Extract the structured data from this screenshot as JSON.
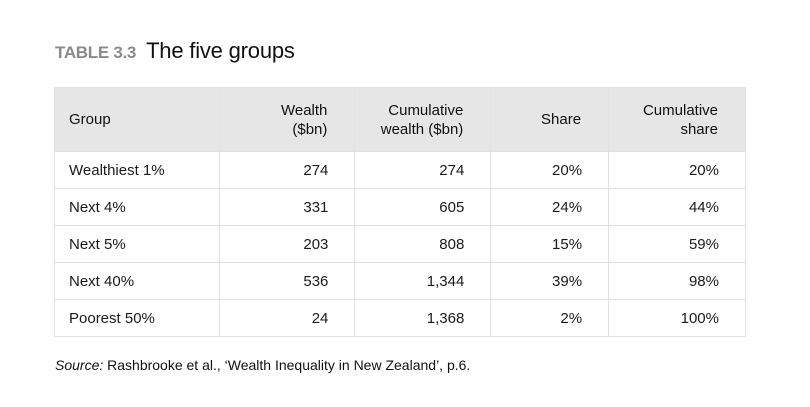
{
  "title": {
    "label": "TABLE 3.3",
    "name": "The five groups"
  },
  "table": {
    "headers": [
      {
        "line1": "Group",
        "line2": ""
      },
      {
        "line1": "Wealth",
        "line2": "($bn)"
      },
      {
        "line1": "Cumulative",
        "line2": "wealth ($bn)"
      },
      {
        "line1": "Share",
        "line2": ""
      },
      {
        "line1": "Cumulative",
        "line2": "share"
      }
    ],
    "rows": [
      [
        "Wealthiest 1%",
        "274",
        "274",
        "20%",
        "20%"
      ],
      [
        "Next 4%",
        "331",
        "605",
        "24%",
        "44%"
      ],
      [
        "Next 5%",
        "203",
        "808",
        "15%",
        "59%"
      ],
      [
        "Next 40%",
        "536",
        "1,344",
        "39%",
        "98%"
      ],
      [
        "Poorest 50%",
        "24",
        "1,368",
        "2%",
        "100%"
      ]
    ]
  },
  "source": {
    "label": "Source:",
    "text": " Rashbrooke et al., ‘Wealth Inequality in New Zealand’, p.6."
  },
  "colors": {
    "header_bg": "#e6e6e6",
    "border": "#e2e2e2",
    "label_gray": "#8a8a8a"
  }
}
